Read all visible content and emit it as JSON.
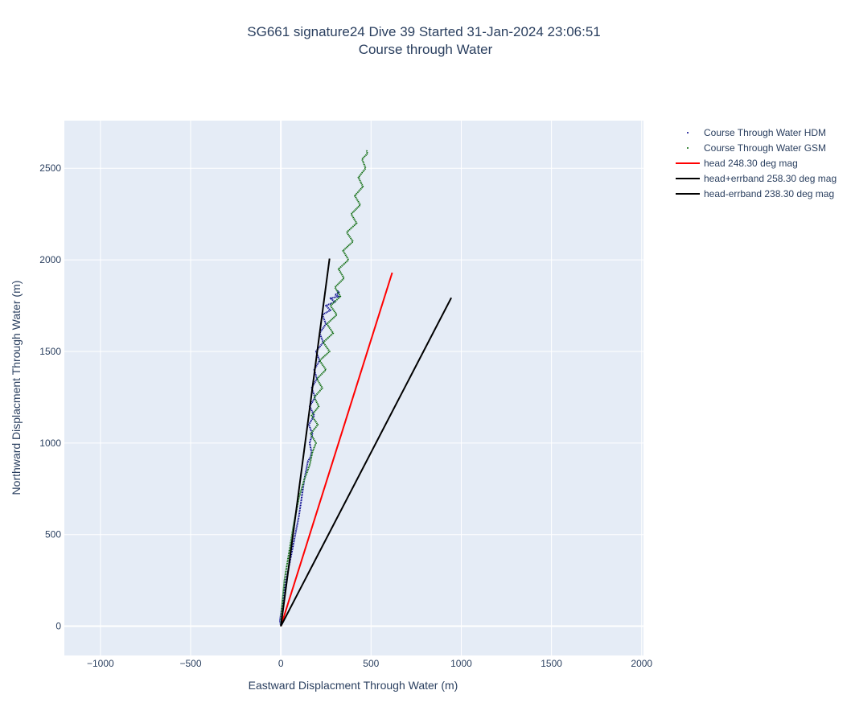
{
  "chart_data": {
    "type": "line",
    "title": "SG661 signature24 Dive 39 Started 31-Jan-2024 23:06:51",
    "subtitle": "Course through Water",
    "xlabel": "Eastward Displacment Through Water (m)",
    "ylabel": "Northward Displacment Through Water (m)",
    "xlim": [
      -1200,
      2010
    ],
    "ylim": [
      -160,
      2760
    ],
    "xticks": [
      -1000,
      -500,
      0,
      500,
      1000,
      1500,
      2000
    ],
    "yticks": [
      0,
      500,
      1000,
      1500,
      2000,
      2500
    ],
    "grid": true,
    "legend_position": "right",
    "colors": {
      "plot_bg": "#e5ecf6",
      "grid": "#ffffff",
      "hdm": "#00008b",
      "gsm": "#006400",
      "head": "#ff0000",
      "errband": "#000000"
    },
    "series": [
      {
        "name": "Course Through Water HDM",
        "kind": "markers",
        "color": "#00008b",
        "x": [
          0,
          -5,
          5,
          20,
          40,
          60,
          80,
          100,
          115,
          130,
          150,
          165,
          170,
          160,
          175,
          155,
          185,
          160,
          190,
          170,
          200,
          185,
          215,
          195,
          235,
          215,
          250,
          230,
          275,
          250,
          300,
          275,
          320,
          300,
          325,
          315
        ],
        "y": [
          0,
          30,
          100,
          200,
          300,
          400,
          500,
          600,
          700,
          800,
          900,
          925,
          950,
          1000,
          1050,
          1100,
          1150,
          1200,
          1250,
          1300,
          1350,
          1400,
          1450,
          1500,
          1550,
          1600,
          1650,
          1700,
          1725,
          1750,
          1770,
          1790,
          1800,
          1810,
          1820,
          1830
        ]
      },
      {
        "name": "Course Through Water GSM",
        "kind": "markers",
        "color": "#006400",
        "x": [
          0,
          5,
          20,
          45,
          70,
          100,
          130,
          160,
          175,
          195,
          165,
          205,
          170,
          210,
          185,
          230,
          200,
          250,
          215,
          270,
          235,
          290,
          255,
          310,
          275,
          330,
          300,
          350,
          320,
          375,
          345,
          400,
          365,
          420,
          390,
          440,
          410,
          455,
          430,
          470,
          450,
          480,
          475
        ],
        "y": [
          0,
          100,
          250,
          400,
          550,
          700,
          800,
          880,
          950,
          1000,
          1050,
          1100,
          1150,
          1200,
          1250,
          1300,
          1350,
          1400,
          1450,
          1500,
          1550,
          1600,
          1650,
          1700,
          1750,
          1800,
          1850,
          1900,
          1950,
          2000,
          2050,
          2100,
          2150,
          2200,
          2250,
          2300,
          2350,
          2400,
          2450,
          2500,
          2550,
          2580,
          2600
        ]
      },
      {
        "name": "head 248.30 deg mag",
        "kind": "line",
        "color": "#ff0000",
        "x": [
          0,
          617
        ],
        "y": [
          0,
          1930
        ]
      },
      {
        "name": "head+errband 258.30 deg mag",
        "kind": "line",
        "color": "#000000",
        "x": [
          0,
          270
        ],
        "y": [
          0,
          2007
        ]
      },
      {
        "name": "head-errband 238.30 deg mag",
        "kind": "line",
        "color": "#000000",
        "x": [
          0,
          945
        ],
        "y": [
          0,
          1793
        ]
      }
    ]
  }
}
